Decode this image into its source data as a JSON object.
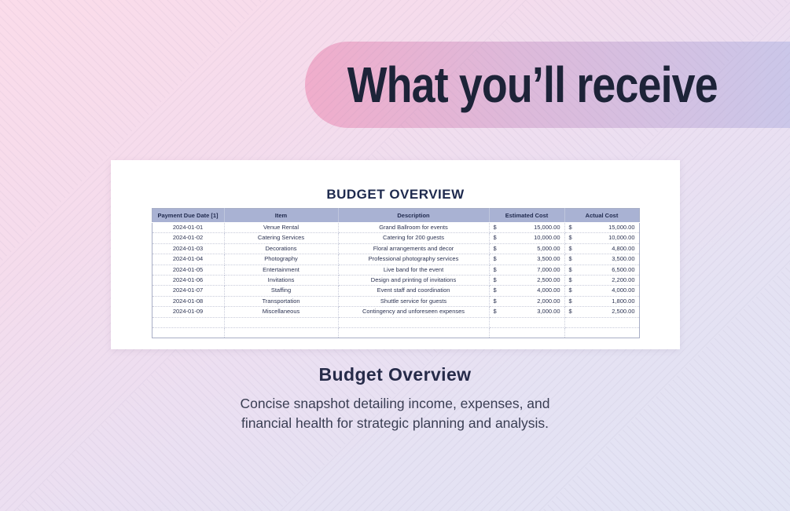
{
  "header": {
    "title": "What you’ll receive"
  },
  "card": {
    "table_title": "BUDGET OVERVIEW",
    "table": {
      "columns": [
        "Payment Due Date [1]",
        "Item",
        "Description",
        "Estimated Cost",
        "Actual Cost"
      ],
      "currency_symbol": "$",
      "rows": [
        {
          "date": "2024-01-01",
          "item": "Venue Rental",
          "description": "Grand Ballroom for events",
          "estimated": "15,000.00",
          "actual": "15,000.00"
        },
        {
          "date": "2024-01-02",
          "item": "Catering Services",
          "description": "Catering for 200 guests",
          "estimated": "10,000.00",
          "actual": "10,000.00"
        },
        {
          "date": "2024-01-03",
          "item": "Decorations",
          "description": "Floral arrangements and decor",
          "estimated": "5,000.00",
          "actual": "4,800.00"
        },
        {
          "date": "2024-01-04",
          "item": "Photography",
          "description": "Professional photography services",
          "estimated": "3,500.00",
          "actual": "3,500.00"
        },
        {
          "date": "2024-01-05",
          "item": "Entertainment",
          "description": "Live band for the event",
          "estimated": "7,000.00",
          "actual": "6,500.00"
        },
        {
          "date": "2024-01-06",
          "item": "Invitations",
          "description": "Design and printing of invitations",
          "estimated": "2,500.00",
          "actual": "2,200.00"
        },
        {
          "date": "2024-01-07",
          "item": "Staffing",
          "description": "Event staff and coordination",
          "estimated": "4,000.00",
          "actual": "4,000.00"
        },
        {
          "date": "2024-01-08",
          "item": "Transportation",
          "description": "Shuttle service for guests",
          "estimated": "2,000.00",
          "actual": "1,800.00"
        },
        {
          "date": "2024-01-09",
          "item": "Miscellaneous",
          "description": "Contingency and unforeseen expenses",
          "estimated": "3,000.00",
          "actual": "2,500.00"
        }
      ],
      "empty_row_count": 2
    }
  },
  "footer": {
    "heading": "Budget Overview",
    "description": "Concise snapshot detailing income, expenses, and financial health for strategic planning and analysis."
  },
  "colors": {
    "banner_gradient_start": "#f0adcb",
    "banner_gradient_end": "#cbc7e9",
    "banner_text": "#1d2338",
    "page_gradient_start": "#fbdcea",
    "page_gradient_end": "#e2e4f4",
    "card_background": "#ffffff",
    "table_header_background": "#a9b2d3",
    "table_header_text": "#222c50",
    "table_text": "#2c3352",
    "caption_heading_text": "#262b49",
    "caption_body_text": "#3a3e53"
  }
}
